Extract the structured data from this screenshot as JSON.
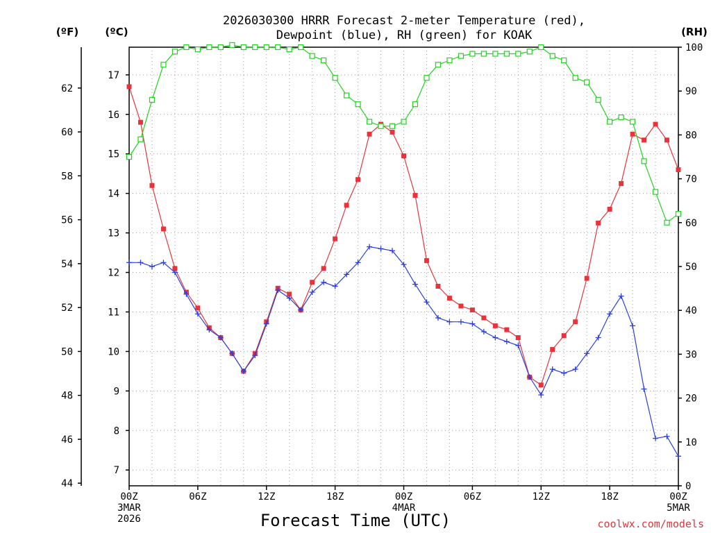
{
  "chart_data": {
    "type": "line",
    "title_line1": "2026030300 HRRR Forecast 2-meter Temperature (red),",
    "title_line2": "Dewpoint (blue), RH (green) for KOAK",
    "xlabel": "Forecast Time (UTC)",
    "credit": "coolwx.com/models",
    "units": {
      "fahrenheit": "(ºF)",
      "celsius": "(ºC)",
      "rh": "(RH)"
    },
    "x_range_hours": [
      0,
      48
    ],
    "x_ticks": [
      {
        "hour": 0,
        "label": "00Z",
        "sub1": "3MAR",
        "sub2": "2026"
      },
      {
        "hour": 6,
        "label": "06Z"
      },
      {
        "hour": 12,
        "label": "12Z"
      },
      {
        "hour": 18,
        "label": "18Z"
      },
      {
        "hour": 24,
        "label": "00Z",
        "sub1": "4MAR"
      },
      {
        "hour": 30,
        "label": "06Z"
      },
      {
        "hour": 36,
        "label": "12Z"
      },
      {
        "hour": 42,
        "label": "18Z"
      },
      {
        "hour": 48,
        "label": "00Z",
        "sub1": "5MAR"
      }
    ],
    "celsius_range": [
      6.6,
      17.7
    ],
    "celsius_ticks": [
      7,
      8,
      9,
      10,
      11,
      12,
      13,
      14,
      15,
      16,
      17
    ],
    "fahrenheit_ticks": [
      44,
      46,
      48,
      50,
      52,
      54,
      56,
      58,
      60,
      62
    ],
    "rh_range": [
      0,
      100
    ],
    "rh_ticks": [
      0,
      10,
      20,
      30,
      40,
      50,
      60,
      70,
      80,
      90,
      100
    ],
    "grid": true,
    "colors": {
      "temperature": "#e8333b",
      "dewpoint": "#2a3ee0",
      "rh": "#1fd41f"
    },
    "series": [
      {
        "name": "Temperature (red)",
        "axis": "celsius",
        "marker": "filled-square",
        "x": [
          0,
          1,
          2,
          3,
          4,
          5,
          6,
          7,
          8,
          9,
          10,
          11,
          12,
          13,
          14,
          15,
          16,
          17,
          18,
          19,
          20,
          21,
          22,
          23,
          24,
          25,
          26,
          27,
          28,
          29,
          30,
          31,
          32,
          33,
          34,
          35,
          36,
          37,
          38,
          39,
          40,
          41,
          42,
          43,
          44,
          45,
          46,
          47,
          48
        ],
        "values": [
          16.7,
          15.8,
          14.2,
          13.1,
          12.1,
          11.5,
          11.1,
          10.6,
          10.35,
          9.95,
          9.5,
          9.95,
          10.75,
          11.6,
          11.45,
          11.05,
          11.75,
          12.1,
          12.85,
          13.7,
          14.35,
          15.5,
          15.75,
          15.55,
          14.95,
          13.95,
          12.3,
          11.65,
          11.35,
          11.15,
          11.05,
          10.85,
          10.65,
          10.55,
          10.35,
          9.35,
          9.15,
          10.05,
          10.4,
          10.75,
          11.85,
          13.25,
          13.6,
          14.25,
          15.5,
          15.35,
          15.75,
          15.35,
          14.6
        ]
      },
      {
        "name": "Dewpoint (blue)",
        "axis": "celsius",
        "marker": "plus",
        "x": [
          0,
          1,
          2,
          3,
          4,
          5,
          6,
          7,
          8,
          9,
          10,
          11,
          12,
          13,
          14,
          15,
          16,
          17,
          18,
          19,
          20,
          21,
          22,
          23,
          24,
          25,
          26,
          27,
          28,
          29,
          30,
          31,
          32,
          33,
          34,
          35,
          36,
          37,
          38,
          39,
          40,
          41,
          42,
          43,
          44,
          45,
          46,
          47,
          48
        ],
        "values": [
          12.25,
          12.25,
          12.15,
          12.25,
          12.0,
          11.45,
          10.95,
          10.55,
          10.35,
          9.95,
          9.5,
          9.9,
          10.7,
          11.55,
          11.35,
          11.05,
          11.5,
          11.75,
          11.65,
          11.95,
          12.25,
          12.65,
          12.6,
          12.55,
          12.2,
          11.7,
          11.25,
          10.85,
          10.75,
          10.75,
          10.7,
          10.5,
          10.35,
          10.25,
          10.15,
          9.35,
          8.9,
          9.55,
          9.45,
          9.55,
          9.95,
          10.35,
          10.95,
          11.4,
          10.65,
          9.05,
          7.8,
          7.85,
          7.35
        ]
      },
      {
        "name": "RH (green)",
        "axis": "rh",
        "marker": "open-square",
        "x": [
          0,
          1,
          2,
          3,
          4,
          5,
          6,
          7,
          8,
          9,
          10,
          11,
          12,
          13,
          14,
          15,
          16,
          17,
          18,
          19,
          20,
          21,
          22,
          23,
          24,
          25,
          26,
          27,
          28,
          29,
          30,
          31,
          32,
          33,
          34,
          35,
          36,
          37,
          38,
          39,
          40,
          41,
          42,
          43,
          44,
          45,
          46,
          47,
          48
        ],
        "values": [
          75,
          79,
          88,
          96,
          99,
          100,
          99.5,
          100,
          100,
          100.5,
          100,
          100,
          100,
          100,
          99.5,
          100,
          98,
          97,
          93,
          89,
          87,
          83,
          82,
          82,
          83,
          87,
          93,
          96,
          97,
          98,
          98.5,
          98.5,
          98.5,
          98.5,
          98.5,
          99,
          100,
          98,
          97,
          93,
          92,
          88,
          83,
          84,
          83,
          74,
          67,
          60,
          62
        ]
      }
    ]
  }
}
